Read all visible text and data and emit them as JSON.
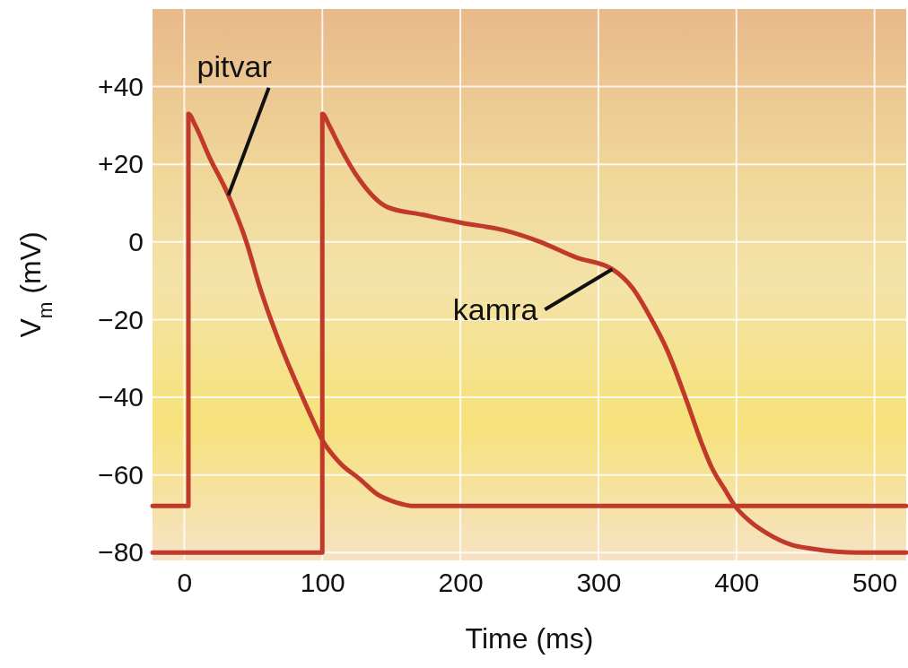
{
  "chart_data": {
    "type": "line",
    "xlabel": "Time (ms)",
    "ylabel": "V$_{m}$ (mV)",
    "xlim": [
      -23,
      523
    ],
    "ylim": [
      -82,
      60
    ],
    "xticks": [
      0,
      100,
      200,
      300,
      400,
      500
    ],
    "yticks": [
      {
        "value": 40,
        "label": "+40"
      },
      {
        "value": 20,
        "label": "+20"
      },
      0,
      {
        "value": -20,
        "label": "−20"
      },
      {
        "value": -40,
        "label": "−40"
      },
      {
        "value": -60,
        "label": "−60"
      },
      {
        "value": -80,
        "label": "−80"
      }
    ],
    "grid": true,
    "marker": "none",
    "line_style": "solid",
    "series": [
      {
        "color": "#c0392b",
        "x": [
          -23,
          3,
          3,
          8,
          18,
          32,
          45,
          55,
          68,
          82,
          92,
          100,
          113,
          127,
          140,
          153,
          167,
          180,
          523
        ],
        "values": [
          -68,
          -68,
          33,
          30,
          22,
          12,
          0,
          -12,
          -25,
          -37,
          -45,
          -51,
          -57,
          -61,
          -65,
          -67,
          -68,
          -68,
          -68
        ]
      },
      {
        "color": "#c0392b",
        "x": [
          -23,
          100,
          100,
          105,
          112,
          127,
          147,
          173,
          200,
          232,
          258,
          284,
          310,
          325,
          337,
          350,
          363,
          375,
          382,
          392,
          399,
          410,
          422,
          440,
          455,
          488,
          523
        ],
        "values": [
          -80,
          -80,
          33,
          30,
          25,
          16,
          9,
          7,
          5,
          3,
          0,
          -4,
          -7,
          -12,
          -19,
          -28,
          -40,
          -52,
          -58,
          -64,
          -68,
          -72,
          -75,
          -78,
          -79,
          -80,
          -80
        ]
      }
    ],
    "annotations": [
      {
        "text": "pitvar",
        "x": 32,
        "y": 12
      },
      {
        "text": "kamra",
        "x": 310,
        "y": -7
      }
    ]
  }
}
